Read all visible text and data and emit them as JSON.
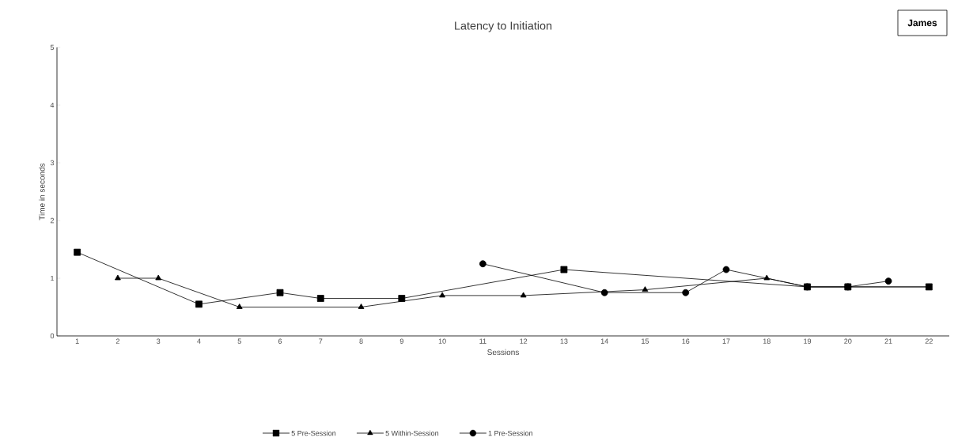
{
  "chart_data": {
    "type": "line",
    "title": "Latency to Initiation",
    "xlabel": "Sessions",
    "ylabel": "Time in seconds",
    "annotations": [
      "James"
    ],
    "categories": [
      "1",
      "2",
      "3",
      "4",
      "5",
      "6",
      "7",
      "8",
      "9",
      "10",
      "11",
      "12",
      "13",
      "14",
      "15",
      "16",
      "17",
      "18",
      "19",
      "20",
      "21",
      "22"
    ],
    "series": [
      {
        "name": "5 Pre-Session",
        "color": "#000000",
        "marker": "square",
        "values": [
          1.45,
          null,
          null,
          0.55,
          null,
          0.75,
          0.65,
          null,
          0.65,
          null,
          null,
          null,
          1.15,
          null,
          null,
          null,
          null,
          null,
          0.85,
          0.85,
          null,
          0.85
        ]
      },
      {
        "name": "5 Within-Session",
        "color": "#000000",
        "marker": "triangle",
        "values": [
          null,
          1.0,
          1.0,
          null,
          0.5,
          null,
          null,
          0.5,
          null,
          0.7,
          null,
          0.7,
          null,
          null,
          0.8,
          null,
          null,
          1.0,
          0.85,
          0.85,
          null,
          0.85
        ]
      },
      {
        "name": "1 Pre-Session",
        "color": "#000000",
        "marker": "circle",
        "values": [
          null,
          null,
          null,
          null,
          null,
          null,
          null,
          null,
          null,
          null,
          1.25,
          null,
          null,
          0.75,
          null,
          0.75,
          1.15,
          null,
          0.85,
          0.85,
          0.95,
          null
        ]
      }
    ],
    "ylim": [
      0,
      5
    ],
    "yticks": [
      0,
      1,
      2,
      3,
      4,
      5
    ],
    "grid": false,
    "legend": "bottom",
    "line_style": "solid"
  }
}
